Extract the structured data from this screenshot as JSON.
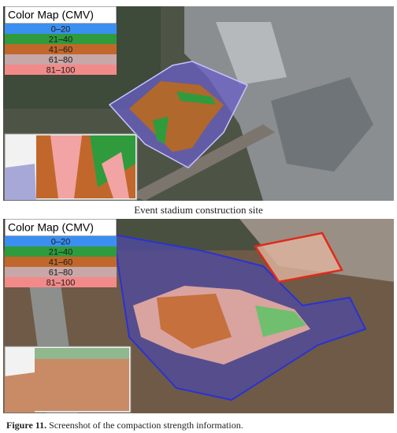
{
  "figures": [
    {
      "legend": {
        "title": "Color Map (CMV)",
        "entries": [
          {
            "label": "0–20",
            "color": "#3b8ff0"
          },
          {
            "label": "21–40",
            "color": "#2f9b3c"
          },
          {
            "label": "41–60",
            "color": "#c2672b"
          },
          {
            "label": "61–80",
            "color": "#c7a7a7"
          },
          {
            "label": "81–100",
            "color": "#f28a8a"
          }
        ]
      },
      "caption": "Event stadium construction site"
    },
    {
      "legend": {
        "title": "Color Map (CMV)",
        "entries": [
          {
            "label": "0–20",
            "color": "#3b8ff0"
          },
          {
            "label": "21–40",
            "color": "#2f9b3c"
          },
          {
            "label": "41–60",
            "color": "#c2672b"
          },
          {
            "label": "61–80",
            "color": "#c7a7a7"
          },
          {
            "label": "81–100",
            "color": "#f28a8a"
          }
        ]
      }
    }
  ],
  "figure_caption": {
    "label": "Figure 11.",
    "text": "Screenshot of the compaction strength information."
  }
}
